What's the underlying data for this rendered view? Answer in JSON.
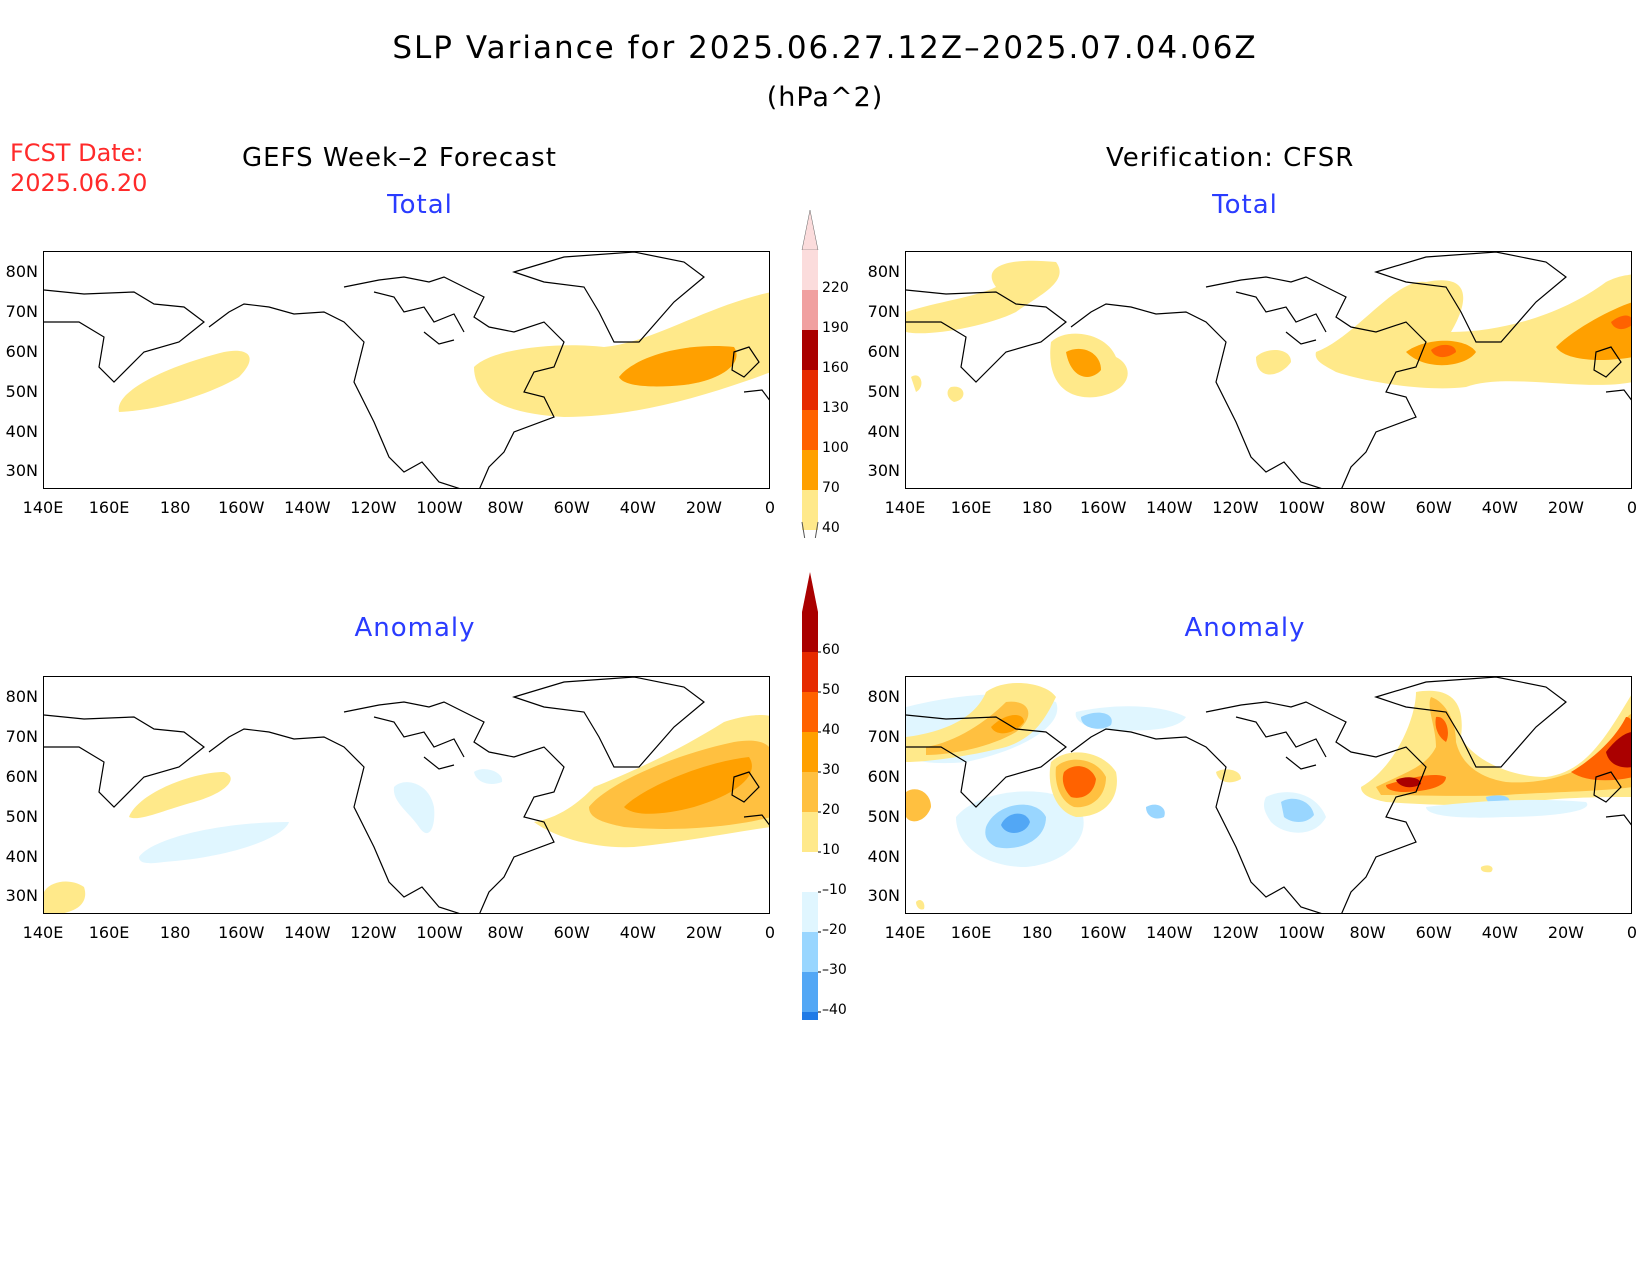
{
  "header": {
    "title": "SLP Variance for 2025.06.27.12Z–2025.07.04.06Z",
    "units": "(hPa^2)",
    "fcst_date_label": "FCST Date:",
    "fcst_date": "2025.06.20",
    "left_column": "GEFS Week–2 Forecast",
    "right_column": "Verification: CFSR"
  },
  "panels": {
    "tl_title": "Total",
    "tr_title": "Total",
    "bl_title": "Anomaly",
    "br_title": "Anomaly"
  },
  "axes": {
    "lat_labels": [
      "80N",
      "70N",
      "60N",
      "50N",
      "40N",
      "30N"
    ],
    "lon_labels": [
      "140E",
      "160E",
      "180",
      "160W",
      "140W",
      "120W",
      "100W",
      "80W",
      "60W",
      "40W",
      "20W",
      "0"
    ]
  },
  "colorbar_total": {
    "levels": [
      "40",
      "70",
      "100",
      "130",
      "160",
      "190",
      "220"
    ],
    "colors": [
      "#ffe98a",
      "#ffa000",
      "#ff6200",
      "#e62a00",
      "#aa0000",
      "#f0a0a0",
      "#fbdcdc"
    ]
  },
  "colorbar_anomaly": {
    "levels": [
      "60",
      "50",
      "40",
      "30",
      "20",
      "10",
      "–10",
      "–20",
      "–30",
      "–40"
    ],
    "colors": {
      "pos": [
        "#ffe98a",
        "#ffc040",
        "#ffa000",
        "#ff6200",
        "#e62a00",
        "#aa0000"
      ],
      "white": "#ffffff",
      "neg": [
        "#e0f6ff",
        "#99d6ff",
        "#52a7f5",
        "#1f7ae6",
        "#0e52c4"
      ]
    }
  }
}
